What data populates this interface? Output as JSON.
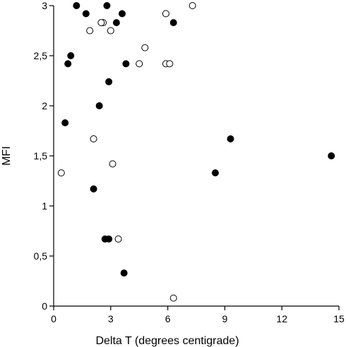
{
  "chart_data": {
    "type": "scatter",
    "title": "",
    "xlabel": "Delta T (degrees centigrade)",
    "ylabel": "MFI",
    "xlim": [
      0,
      15
    ],
    "ylim": [
      0,
      3
    ],
    "xticks": [
      0,
      3,
      6,
      9,
      12,
      15
    ],
    "xtick_labels": [
      "0",
      "3",
      "6",
      "9",
      "12",
      "15"
    ],
    "yticks": [
      0,
      0.5,
      1,
      1.5,
      2,
      2.5,
      3
    ],
    "ytick_labels": [
      "0",
      "0,5",
      "1",
      "1,5",
      "2",
      "2,5",
      "3"
    ],
    "grid": false,
    "legend": "none",
    "series": [
      {
        "marker": "filled-circle",
        "color": "#000000",
        "points": [
          [
            1.2,
            3.0
          ],
          [
            1.7,
            2.92
          ],
          [
            2.8,
            3.0
          ],
          [
            3.6,
            2.92
          ],
          [
            3.3,
            2.83
          ],
          [
            6.3,
            2.83
          ],
          [
            0.9,
            2.5
          ],
          [
            0.75,
            2.42
          ],
          [
            3.8,
            2.42
          ],
          [
            2.9,
            2.24
          ],
          [
            2.4,
            2.0
          ],
          [
            0.6,
            1.83
          ],
          [
            9.3,
            1.67
          ],
          [
            14.6,
            1.5
          ],
          [
            8.5,
            1.33
          ],
          [
            2.1,
            1.17
          ],
          [
            2.7,
            0.67
          ],
          [
            2.9,
            0.67
          ],
          [
            3.7,
            0.33
          ]
        ]
      },
      {
        "marker": "open-circle",
        "color": "#000000",
        "points": [
          [
            7.3,
            3.0
          ],
          [
            5.9,
            2.92
          ],
          [
            2.6,
            2.83
          ],
          [
            2.5,
            2.83
          ],
          [
            1.9,
            2.75
          ],
          [
            3.0,
            2.75
          ],
          [
            4.8,
            2.58
          ],
          [
            4.5,
            2.42
          ],
          [
            5.9,
            2.42
          ],
          [
            6.1,
            2.42
          ],
          [
            2.1,
            1.67
          ],
          [
            0.4,
            1.33
          ],
          [
            3.1,
            1.42
          ],
          [
            3.4,
            0.67
          ],
          [
            6.3,
            0.08
          ]
        ]
      }
    ]
  }
}
